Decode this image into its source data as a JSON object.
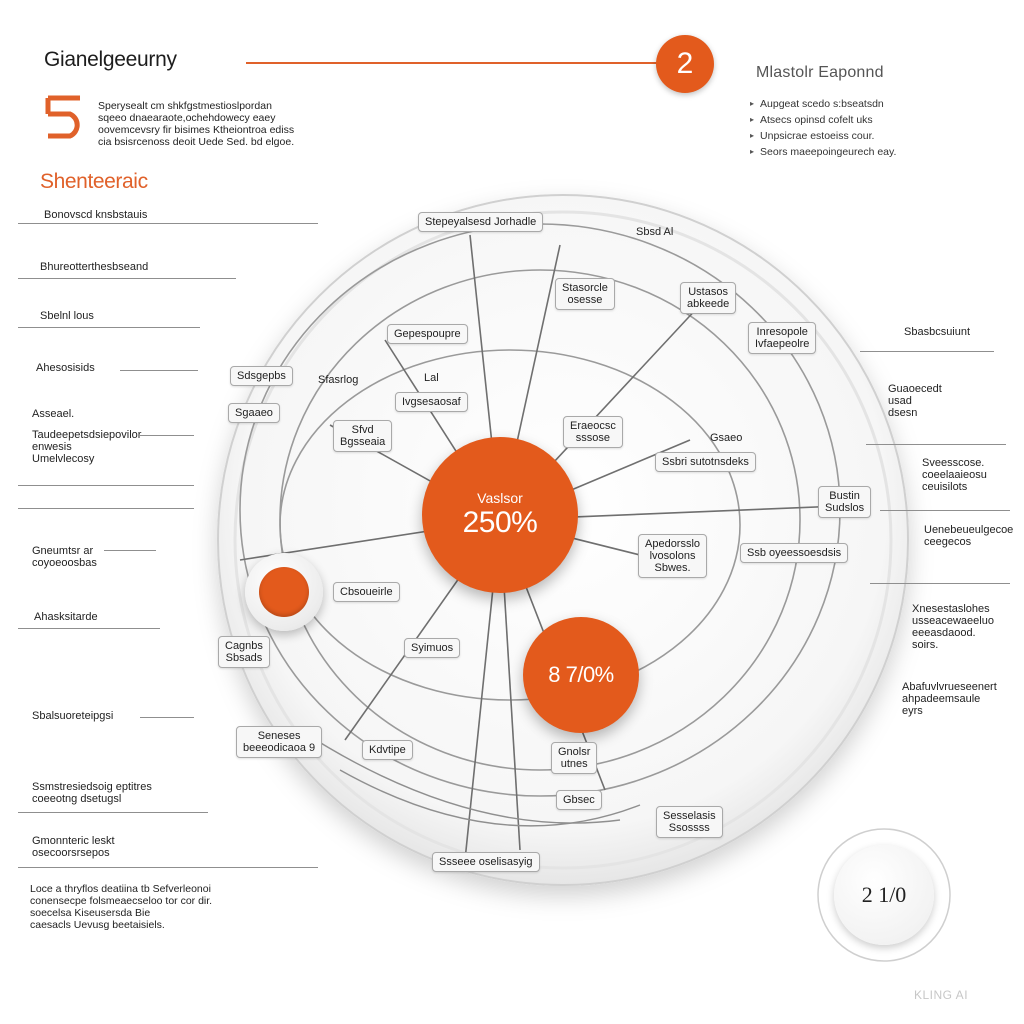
{
  "header": {
    "title": "Gianelgeeurny",
    "step_badge": "2",
    "right_title": "Mlastolr Eaponnd",
    "right_bullets": [
      "Aupgeat scedo s:bseatsdn",
      "Atsecs opinsd cofelt uks",
      "Unpsicrae estoeiss cour.",
      "Seors maeepoingeurech eay."
    ]
  },
  "intro": {
    "logo_glyph": "5",
    "lines": [
      "Sperysealt cm shkfgstmestioslpordan",
      "sqeeo dnaearaote,ochehdowecy eaey",
      "oovemcevsry fir bisimes Ktheiontroa ediss",
      "cia  bsisrcenoss deoit  Uede Sed. bd elgoe."
    ]
  },
  "section_heading": "Shenteeraic",
  "left_labels": [
    "Bonovscd knsbstauis",
    "Bhureotterthesbseand",
    "Sbelnl lous",
    "Ahesosisids",
    "Asseael.",
    "Taudeepetsdsiepovilor\nenwesis\nUmelvlecosy",
    "Gneumtsr ar\ncoyoeoosbas",
    "Ahasksitarde",
    "Sbalsuoreteipgsi",
    "Ssmstresiedsoig eptitres\ncoeeotng dsetugsl",
    "Gmonnteric leskt\nosecoorsrsepos",
    "Loce a thryflos deatiina tb Sefverleonoi\nconensecpe folsmeaecseloo tor cor dir.\nsoecelsa Kiseusersda Bie\ncaesacls Uevusg beetaisiels."
  ],
  "right_labels": [
    "Sbasbcsuiunt",
    "Guaoecedt\nusad\ndsesn",
    "Sveesscose.\ncoeelaaieosu\nceuisilots",
    "Uenebeueulgecoe\nceegecos",
    "Xnesestaslohes\nusseacewaeeluo\neeeasdaood.\nsoirs.",
    "Abafuvlvrueseenert\nahpadeemsaule\neyrs"
  ],
  "diagram": {
    "center_label": "Vaslsor",
    "center_value": "250%",
    "secondary_value": "8 7/0%",
    "dial_value": "2 1/0",
    "nodes": [
      "Stepeyalsesd Jorhadle",
      "Sbsd Al",
      "Stasorcle\nosesse",
      "Ustasos\nabkeede",
      "Inresopole\nIvfaepeolre",
      "Gepespoupre",
      "Sdsgepbs",
      "Sfasrlog",
      "Lal",
      "Ivgsesaosaf",
      "Sgaaeo",
      "Sfvd\nBgsseaia",
      "Eraeocsc\nsssose",
      "Gsaeo",
      "Ssbri sutotnsdeks",
      "Bustin\nSudslos",
      "Apedorsslo\nlvosolons\nSbwes.",
      "Ssb oyeessoesdsis",
      "Cbsoueirle",
      "Cagnbs\nSbsads",
      "Syimuos",
      "Seneses\nbeeeodicaoa 9",
      "Kdvtipe",
      "Gnolsr\nutnes",
      "Gbsec",
      "Sesselasis\nSsossss",
      "Ssseee oselisasyig"
    ]
  },
  "watermark": "KLING AI",
  "colors": {
    "accent": "#e35a1c",
    "heading_accent": "#e0612a",
    "line": "#8f8f8f",
    "ring": "#9a9a9a"
  }
}
